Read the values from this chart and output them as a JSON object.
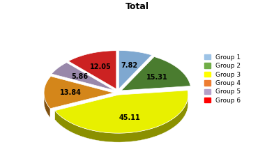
{
  "title": "Total",
  "groups": [
    "Group 1",
    "Group 2",
    "Group 3",
    "Group 4",
    "Group 5",
    "Group 6"
  ],
  "values": [
    7.82,
    15.31,
    45.11,
    13.84,
    5.86,
    12.05
  ],
  "colors": [
    "#7fa8d0",
    "#4a7c2f",
    "#e8f000",
    "#d4861a",
    "#9988aa",
    "#cc2222"
  ],
  "explode": [
    0.06,
    0.06,
    0.03,
    0.06,
    0.06,
    0.06
  ],
  "startangle": 90,
  "background_color": "#ffffff",
  "legend_colors": [
    "#9dc3e6",
    "#70ad47",
    "#ffff00",
    "#ed7d31",
    "#b5a0c8",
    "#ff0000"
  ]
}
